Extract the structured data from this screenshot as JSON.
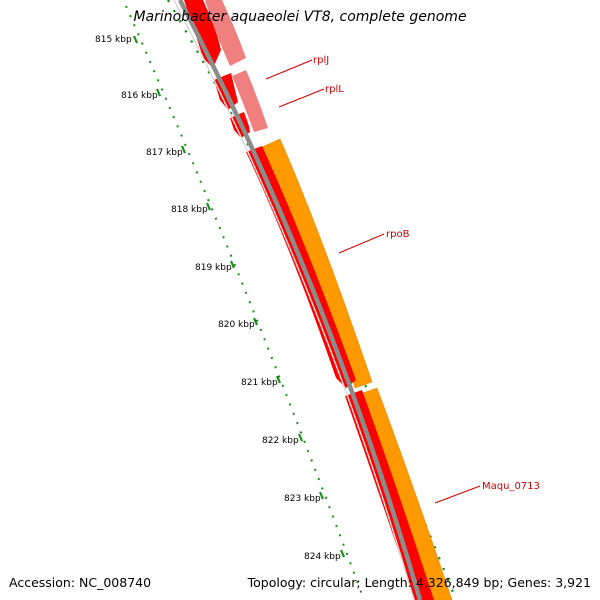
{
  "title": "Marinobacter aquaeolei VT8, complete genome",
  "footer": {
    "accession": "Accession: NC_008740",
    "summary": "Topology: circular; Length: 4,326,849 bp; Genes: 3,921"
  },
  "colors": {
    "backbone": "#8c8c8c",
    "cds": "#ff0000",
    "gene": "#ff9900",
    "gene_pale": "#f08080",
    "tick": "#1a8f1a",
    "label": "#cc0000"
  },
  "ruler": {
    "unit": "kbp",
    "ticks": [
      "815 kbp",
      "816 kbp",
      "817 kbp",
      "818 kbp",
      "819 kbp",
      "820 kbp",
      "821 kbp",
      "822 kbp",
      "823 kbp",
      "824 kbp"
    ]
  },
  "genes": [
    {
      "name": "rplJ"
    },
    {
      "name": "rplL"
    },
    {
      "name": "rpoB"
    },
    {
      "name": "Maqu_0713"
    }
  ]
}
